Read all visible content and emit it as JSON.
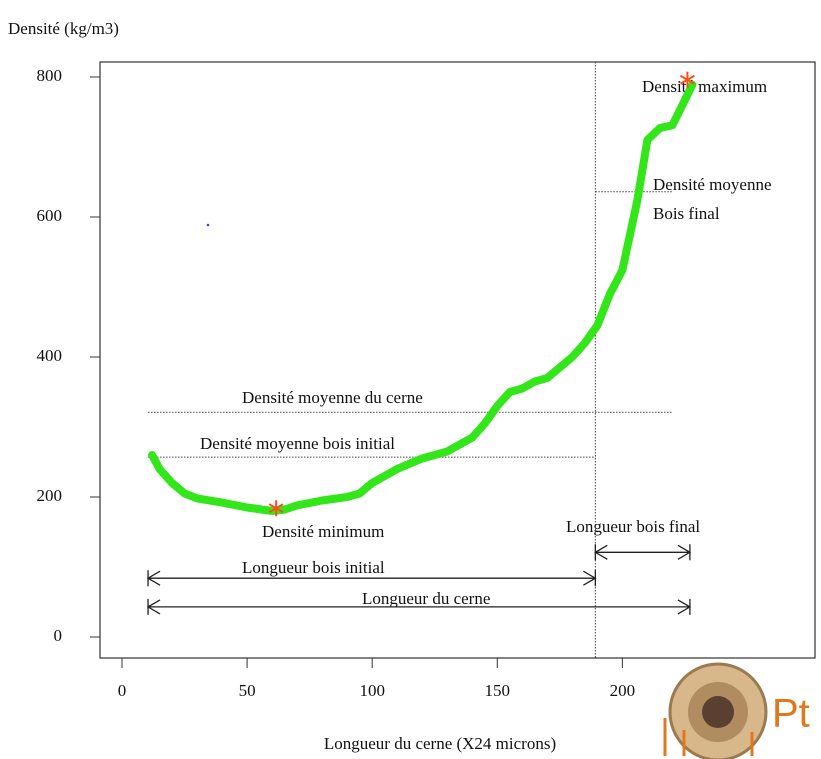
{
  "chart_data": {
    "type": "line",
    "ylabel": "Densité (kg/m3)",
    "xlabel": "Longueur du cerne (X24 microns)",
    "x": [
      12,
      15,
      20,
      25,
      30,
      40,
      50,
      60,
      65,
      70,
      80,
      90,
      95,
      100,
      110,
      120,
      130,
      140,
      145,
      150,
      155,
      160,
      165,
      170,
      175,
      180,
      185,
      190,
      195,
      200,
      206,
      210,
      215,
      220,
      225,
      228
    ],
    "series": [
      {
        "color": "#33e619",
        "values": [
          260,
          240,
          220,
          205,
          198,
          192,
          185,
          180,
          182,
          188,
          195,
          200,
          205,
          220,
          240,
          255,
          265,
          285,
          305,
          330,
          350,
          355,
          365,
          370,
          385,
          400,
          420,
          445,
          490,
          524,
          624,
          710,
          727,
          731,
          767,
          789
        ]
      }
    ],
    "markers": {
      "color": "#ff4d1a",
      "x": [
        226,
        61.6
      ],
      "values": [
        796,
        184
      ]
    },
    "hlines": [
      {
        "y": 321,
        "xmin": 10.4,
        "xmax": 220
      },
      {
        "y": 257,
        "xmin": 10.4,
        "xmax": 189.2
      },
      {
        "y": 636,
        "xmin": 189.2,
        "xmax": 220
      }
    ],
    "vline": 189.2,
    "arrows": [
      {
        "y": 121,
        "xmin": 189.2,
        "xmax": 227
      },
      {
        "y": 84,
        "xmin": 10.4,
        "xmax": 189.2
      },
      {
        "y": 43,
        "xmin": 10.4,
        "xmax": 227
      }
    ],
    "annotations": [
      "Densité maximum",
      "Densité moyenne",
      "Bois final",
      "Densité moyenne du cerne",
      "Densité moyenne bois initial",
      "Densité minimum",
      "Longueur bois final",
      "Longueur bois initial",
      "Longueur du cerne"
    ],
    "xlim": [
      -8.8,
      277
    ],
    "ylim": [
      -30,
      821.4
    ],
    "xticks": [
      0,
      50,
      100,
      150,
      200
    ],
    "yticks": [
      0,
      200,
      400,
      600,
      800
    ],
    "logo_text": "Pt"
  }
}
